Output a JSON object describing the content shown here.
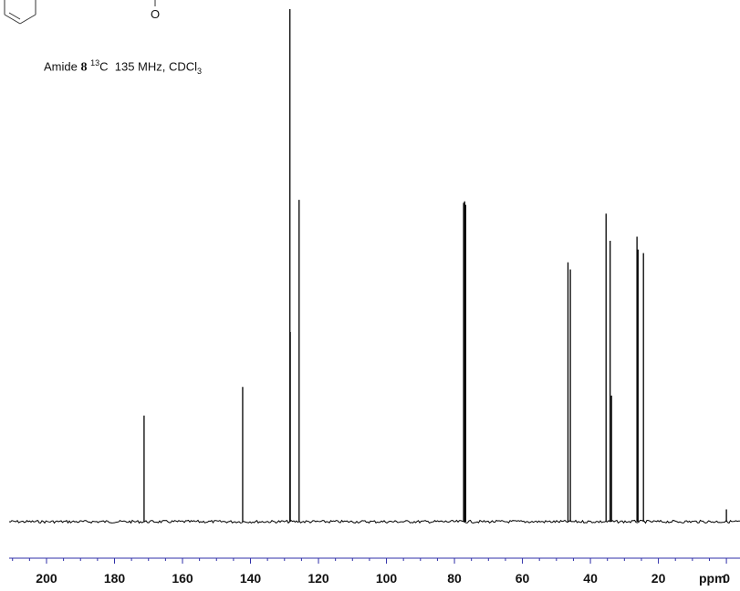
{
  "caption": {
    "prefix": "Amide",
    "compound": "8",
    "nucleus_mass": "13",
    "nucleus_symbol": "C",
    "conditions": "135 MHz, CDCl",
    "solvent_subscript": "3"
  },
  "structure": {
    "heteroatom_label": "O"
  },
  "chart_data": {
    "type": "line",
    "title": "",
    "xlabel": "ppm",
    "ylabel": "",
    "xlim": [
      211,
      -4
    ],
    "x_reversed": true,
    "ylim": [
      0,
      1
    ],
    "grid": false,
    "xticks": [
      200,
      180,
      160,
      140,
      120,
      100,
      80,
      60,
      40,
      20,
      0
    ],
    "xtick_labels": [
      "200",
      "180",
      "160",
      "140",
      "120",
      "100",
      "80",
      "60",
      "40",
      "20",
      "0"
    ],
    "peaks": [
      {
        "ppm": 171.3,
        "height": 0.207
      },
      {
        "ppm": 142.3,
        "height": 0.263
      },
      {
        "ppm": 128.4,
        "height": 1.0
      },
      {
        "ppm": 128.3,
        "height": 0.37
      },
      {
        "ppm": 125.7,
        "height": 0.628
      },
      {
        "ppm": 77.3,
        "height": 0.622
      },
      {
        "ppm": 77.0,
        "height": 0.625
      },
      {
        "ppm": 76.7,
        "height": 0.618
      },
      {
        "ppm": 46.6,
        "height": 0.506
      },
      {
        "ppm": 45.9,
        "height": 0.492
      },
      {
        "ppm": 35.4,
        "height": 0.601
      },
      {
        "ppm": 34.2,
        "height": 0.548
      },
      {
        "ppm": 33.8,
        "height": 0.246
      },
      {
        "ppm": 26.3,
        "height": 0.556
      },
      {
        "ppm": 26.0,
        "height": 0.531
      },
      {
        "ppm": 24.4,
        "height": 0.524
      },
      {
        "ppm": 0.0,
        "height": 0.024
      }
    ]
  },
  "colors": {
    "trace": "#000000",
    "axis": "#2f2fa8",
    "text": "#111111"
  }
}
